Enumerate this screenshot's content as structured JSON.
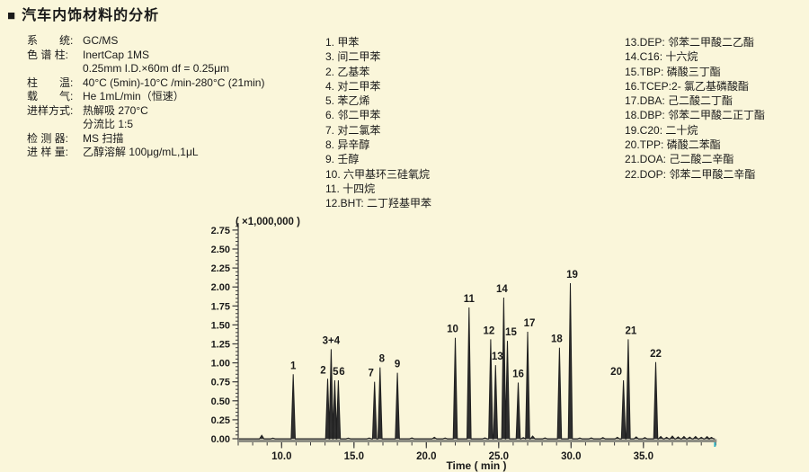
{
  "title": {
    "bullet": "■",
    "text": "汽车内饰材料的分析"
  },
  "conditions": [
    {
      "label": "系　　统:",
      "value": "GC/MS"
    },
    {
      "label": "色 谱 柱:",
      "value": "InertCap 1MS"
    },
    {
      "label": "",
      "value": "0.25mm I.D.×60m df = 0.25μm"
    },
    {
      "label": "柱　　温:",
      "value": "40°C (5min)-10°C /min-280°C (21min)"
    },
    {
      "label": "载　　气:",
      "value": "He 1mL/min（恒速）"
    },
    {
      "label": "进样方式:",
      "value": "热解吸 270°C"
    },
    {
      "label": "",
      "value": "分流比 1:5"
    },
    {
      "label": "检 测 器:",
      "value": "MS 扫描"
    },
    {
      "label": "进 样 量:",
      "value": "乙醇溶解 100μg/mL,1μL"
    }
  ],
  "legend": {
    "col1": [
      "1. 甲苯",
      "3. 间二甲苯",
      "2. 乙基苯",
      "4. 对二甲苯",
      "5. 苯乙烯",
      "6. 邻二甲苯",
      "7. 对二氯苯",
      "8. 异辛醇",
      "9. 壬醇",
      "10. 六甲基环三硅氧烷",
      "11. 十四烷",
      "12.BHT: 二丁羟基甲苯"
    ],
    "col2": [
      "13.DEP: 邻苯二甲酸二乙酯",
      "14.C16: 十六烷",
      "15.TBP: 磷酸三丁酯",
      "16.TCEP:2- 氯乙基磷酸酯",
      "17.DBA: 己二酸二丁酯",
      "18.DBP: 邻苯二甲酸二正丁酯",
      "19.C20: 二十烷",
      "20.TPP: 磷酸二苯酯",
      "21.DOA: 己二酸二辛酯",
      "22.DOP: 邻苯二甲酸二辛酯"
    ]
  },
  "chart_data": {
    "type": "line",
    "subtype": "chromatogram",
    "xlabel": "Time ( min )",
    "y_unit_note": "( ×1,000,000 )",
    "xlim": [
      7.0,
      40.0
    ],
    "ylim": [
      0,
      2.85
    ],
    "x_major_ticks": [
      10,
      15,
      20,
      25,
      30,
      35
    ],
    "x_tick_labels": [
      "10.0",
      "15.0",
      "20.0",
      "25.0",
      "30.0",
      "35.0"
    ],
    "x_minor_step": 1,
    "y_major_ticks": [
      0,
      0.25,
      0.5,
      0.75,
      1.0,
      1.25,
      1.5,
      1.75,
      2.0,
      2.25,
      2.5,
      2.75
    ],
    "y_tick_labels": [
      "0.00",
      "0.25",
      "0.50",
      "0.75",
      "1.00",
      "1.25",
      "1.50",
      "1.75",
      "2.00",
      "2.25",
      "2.50",
      "2.75"
    ],
    "y_minor_step": 0.05,
    "grid": false,
    "peaks": [
      {
        "label": "1",
        "time": 10.8,
        "height": 0.85,
        "label_dx": 0
      },
      {
        "label": "2",
        "time": 13.18,
        "height": 0.79,
        "label_dx": -5
      },
      {
        "label": "3+4",
        "time": 13.42,
        "height": 1.18,
        "label_dx": 0
      },
      {
        "label": "5",
        "time": 13.67,
        "height": 0.77,
        "label_dx": 1
      },
      {
        "label": "6",
        "time": 13.92,
        "height": 0.77,
        "label_dx": 4
      },
      {
        "label": "7",
        "time": 16.42,
        "height": 0.75,
        "label_dx": -4
      },
      {
        "label": "8",
        "time": 16.8,
        "height": 0.94,
        "label_dx": 2
      },
      {
        "label": "9",
        "time": 18.0,
        "height": 0.87,
        "label_dx": 0
      },
      {
        "label": "10",
        "time": 22.0,
        "height": 1.33,
        "label_dx": -3
      },
      {
        "label": "11",
        "time": 22.95,
        "height": 1.73,
        "label_dx": 0
      },
      {
        "label": "12",
        "time": 24.45,
        "height": 1.31,
        "label_dx": -2
      },
      {
        "label": "13",
        "time": 24.78,
        "height": 0.97,
        "label_dx": 2
      },
      {
        "label": "14",
        "time": 25.35,
        "height": 1.86,
        "label_dx": -2
      },
      {
        "label": "15",
        "time": 25.6,
        "height": 1.29,
        "label_dx": 4
      },
      {
        "label": "16",
        "time": 26.35,
        "height": 0.74,
        "label_dx": 0
      },
      {
        "label": "17",
        "time": 27.0,
        "height": 1.41,
        "label_dx": 2
      },
      {
        "label": "18",
        "time": 29.2,
        "height": 1.2,
        "label_dx": -3
      },
      {
        "label": "19",
        "time": 29.95,
        "height": 2.05,
        "label_dx": 2
      },
      {
        "label": "20",
        "time": 33.62,
        "height": 0.77,
        "label_dx": -8
      },
      {
        "label": "21",
        "time": 33.95,
        "height": 1.31,
        "label_dx": 3
      },
      {
        "label": "22",
        "time": 35.85,
        "height": 1.01,
        "label_dx": 0
      }
    ],
    "noise": [
      {
        "t": 8.63,
        "h": 0.045
      },
      {
        "t": 9.4,
        "h": 0.008
      },
      {
        "t": 14.6,
        "h": 0.008
      },
      {
        "t": 16.05,
        "h": 0.01
      },
      {
        "t": 19.0,
        "h": 0.012
      },
      {
        "t": 20.55,
        "h": 0.02
      },
      {
        "t": 21.3,
        "h": 0.01
      },
      {
        "t": 24.05,
        "h": 0.012
      },
      {
        "t": 26.7,
        "h": 0.015
      },
      {
        "t": 27.35,
        "h": 0.035
      },
      {
        "t": 28.2,
        "h": 0.012
      },
      {
        "t": 30.6,
        "h": 0.01
      },
      {
        "t": 31.4,
        "h": 0.012
      },
      {
        "t": 32.2,
        "h": 0.015
      },
      {
        "t": 33.2,
        "h": 0.02
      },
      {
        "t": 34.5,
        "h": 0.025
      },
      {
        "t": 35.1,
        "h": 0.015
      },
      {
        "t": 36.2,
        "h": 0.03
      },
      {
        "t": 36.6,
        "h": 0.02
      },
      {
        "t": 37.0,
        "h": 0.035
      },
      {
        "t": 37.4,
        "h": 0.025
      },
      {
        "t": 37.8,
        "h": 0.03
      },
      {
        "t": 38.2,
        "h": 0.022
      },
      {
        "t": 38.6,
        "h": 0.03
      },
      {
        "t": 39.0,
        "h": 0.02
      },
      {
        "t": 39.4,
        "h": 0.028
      },
      {
        "t": 39.7,
        "h": 0.018
      }
    ],
    "colors": {
      "background": "#faf6da",
      "trace": "#1f1f1f",
      "axis_band": "#8e8e84",
      "tick": "#3c3c3c",
      "text": "#1a1a1a",
      "end_marker": "#35b8c8"
    }
  }
}
